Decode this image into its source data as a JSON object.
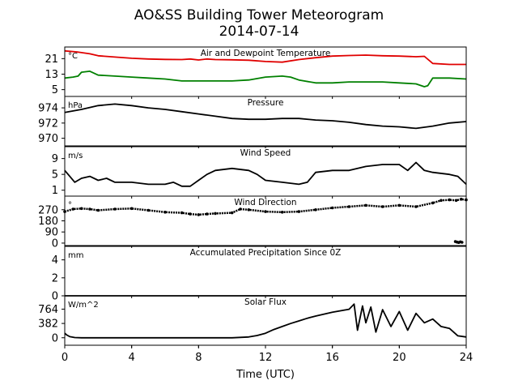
{
  "figure": {
    "title": "AO&SS Building Tower Meteorogram",
    "subtitle": "2014-07-14",
    "xlabel": "Time (UTC)",
    "xlim": [
      0,
      24
    ],
    "xticks": [
      0,
      4,
      8,
      12,
      16,
      20,
      24
    ]
  },
  "chart_data": [
    {
      "id": "temperature",
      "type": "line",
      "title": "Air and Dewpoint Temperature",
      "unit": "°C",
      "ylim": [
        1.5,
        27
      ],
      "yticks": [
        5,
        13,
        21
      ],
      "series": [
        {
          "color": "#e00000",
          "x": [
            0,
            0.7,
            1.5,
            2,
            3,
            4,
            5,
            6,
            7,
            7.5,
            8,
            8.5,
            9,
            10,
            11,
            12,
            13,
            14,
            15,
            16,
            17,
            18,
            19,
            20,
            21,
            21.5,
            22,
            23,
            24
          ],
          "y": [
            25,
            24.5,
            23.5,
            22.5,
            21.8,
            21.2,
            20.8,
            20.6,
            20.5,
            20.8,
            20.3,
            20.8,
            20.5,
            20.4,
            20.2,
            19.5,
            19.2,
            20.5,
            21.5,
            22.3,
            22.6,
            22.8,
            22.5,
            22.3,
            22.0,
            22.2,
            18.5,
            18.0,
            18.0
          ]
        },
        {
          "color": "#008000",
          "x": [
            0,
            0.5,
            0.8,
            1,
            1.5,
            2,
            3,
            4,
            5,
            6,
            7,
            8,
            9,
            10,
            11,
            12,
            13,
            13.5,
            14,
            15,
            16,
            17,
            18,
            19,
            20,
            21,
            21.5,
            21.7,
            22,
            23,
            24
          ],
          "y": [
            11,
            11.5,
            12,
            14,
            14.5,
            12.5,
            12,
            11.5,
            11,
            10.5,
            9.5,
            9.5,
            9.5,
            9.5,
            10,
            11.5,
            12,
            11.5,
            10,
            8.5,
            8.5,
            9,
            9,
            9,
            8.5,
            8,
            6.5,
            7,
            11,
            11,
            10.5
          ]
        }
      ]
    },
    {
      "id": "pressure",
      "type": "line",
      "title": "Pressure",
      "unit": "hPa",
      "ylim": [
        969,
        975.5
      ],
      "yticks": [
        970,
        972,
        974
      ],
      "series": [
        {
          "color": "#000000",
          "x": [
            0,
            1,
            2,
            3,
            4,
            5,
            6,
            7,
            8,
            9,
            10,
            11,
            12,
            13,
            14,
            15,
            16,
            17,
            18,
            19,
            20,
            21,
            22,
            23,
            24
          ],
          "y": [
            973.4,
            973.8,
            974.3,
            974.5,
            974.3,
            974.0,
            973.8,
            973.5,
            973.2,
            972.9,
            972.6,
            972.5,
            972.5,
            972.6,
            972.6,
            972.4,
            972.3,
            972.1,
            971.8,
            971.6,
            971.5,
            971.3,
            971.6,
            972.0,
            972.2
          ]
        }
      ]
    },
    {
      "id": "wind-speed",
      "type": "line",
      "title": "Wind Speed",
      "unit": "m/s",
      "ylim": [
        -0.5,
        12
      ],
      "yticks": [
        1,
        5,
        9
      ],
      "series": [
        {
          "color": "#000000",
          "x": [
            0,
            0.3,
            0.6,
            1,
            1.5,
            2,
            2.5,
            3,
            4,
            5,
            6,
            6.5,
            7,
            7.5,
            8,
            8.5,
            9,
            10,
            11,
            11.5,
            12,
            13,
            14,
            14.5,
            15,
            16,
            17,
            18,
            19,
            20,
            20.5,
            21,
            21.5,
            22,
            23,
            23.5,
            24
          ],
          "y": [
            6,
            4.5,
            3,
            4,
            4.5,
            3.5,
            4,
            3,
            3,
            2.5,
            2.5,
            3,
            2,
            2,
            3.5,
            5,
            6,
            6.5,
            6,
            5,
            3.5,
            3,
            2.5,
            3,
            5.5,
            6,
            6,
            7,
            7.5,
            7.5,
            6,
            8,
            6,
            5.5,
            5,
            4.5,
            2.5
          ]
        }
      ]
    },
    {
      "id": "wind-direction",
      "type": "scatter",
      "title": "Wind Direction",
      "unit": "°",
      "ylim": [
        -20,
        380
      ],
      "yticks": [
        0,
        90,
        180,
        270
      ],
      "series": [
        {
          "color": "#000000",
          "x": [
            0,
            0.5,
            1,
            1.5,
            2,
            3,
            4,
            5,
            6,
            7,
            7.5,
            8,
            8.5,
            9,
            10,
            10.5,
            11,
            12,
            13,
            14,
            15,
            16,
            17,
            18,
            19,
            20,
            21,
            22,
            22.5,
            23,
            23.4,
            23.7,
            24
          ],
          "y": [
            255,
            275,
            280,
            275,
            265,
            275,
            280,
            265,
            250,
            245,
            235,
            230,
            235,
            240,
            245,
            275,
            270,
            255,
            250,
            255,
            270,
            285,
            295,
            305,
            295,
            305,
            295,
            325,
            345,
            350,
            345,
            355,
            350
          ]
        },
        {
          "color": "#000000",
          "x": [
            23.35,
            23.45,
            23.55,
            23.65,
            23.75
          ],
          "y": [
            12,
            8,
            5,
            10,
            6
          ]
        }
      ]
    },
    {
      "id": "precipitation",
      "type": "line",
      "title": "Accumulated Precipitation Since 0Z",
      "unit": "mm",
      "ylim": [
        0,
        5.5
      ],
      "yticks": [
        0,
        2,
        4
      ],
      "series": [
        {
          "color": "#000000",
          "x": [
            0,
            24
          ],
          "y": [
            0,
            0
          ]
        }
      ]
    },
    {
      "id": "solar-flux",
      "type": "line",
      "title": "Solar Flux",
      "unit": "W/m^2",
      "ylim": [
        -200,
        1120
      ],
      "yticks": [
        0,
        382,
        764
      ],
      "series": [
        {
          "color": "#000000",
          "x": [
            0,
            0.1,
            0.3,
            0.6,
            1,
            2,
            4,
            6,
            8,
            10,
            11,
            11.5,
            12,
            12.5,
            13,
            13.5,
            14,
            14.5,
            15,
            16,
            17,
            17.3,
            17.5,
            17.8,
            18,
            18.3,
            18.6,
            19,
            19.5,
            20,
            20.5,
            21,
            21.5,
            22,
            22.5,
            23,
            23.5,
            24
          ],
          "y": [
            120,
            80,
            30,
            5,
            0,
            0,
            0,
            0,
            0,
            0,
            20,
            60,
            120,
            220,
            300,
            380,
            450,
            520,
            580,
            680,
            760,
            900,
            200,
            850,
            400,
            820,
            150,
            750,
            300,
            700,
            200,
            650,
            400,
            500,
            300,
            250,
            50,
            20
          ]
        }
      ]
    }
  ]
}
